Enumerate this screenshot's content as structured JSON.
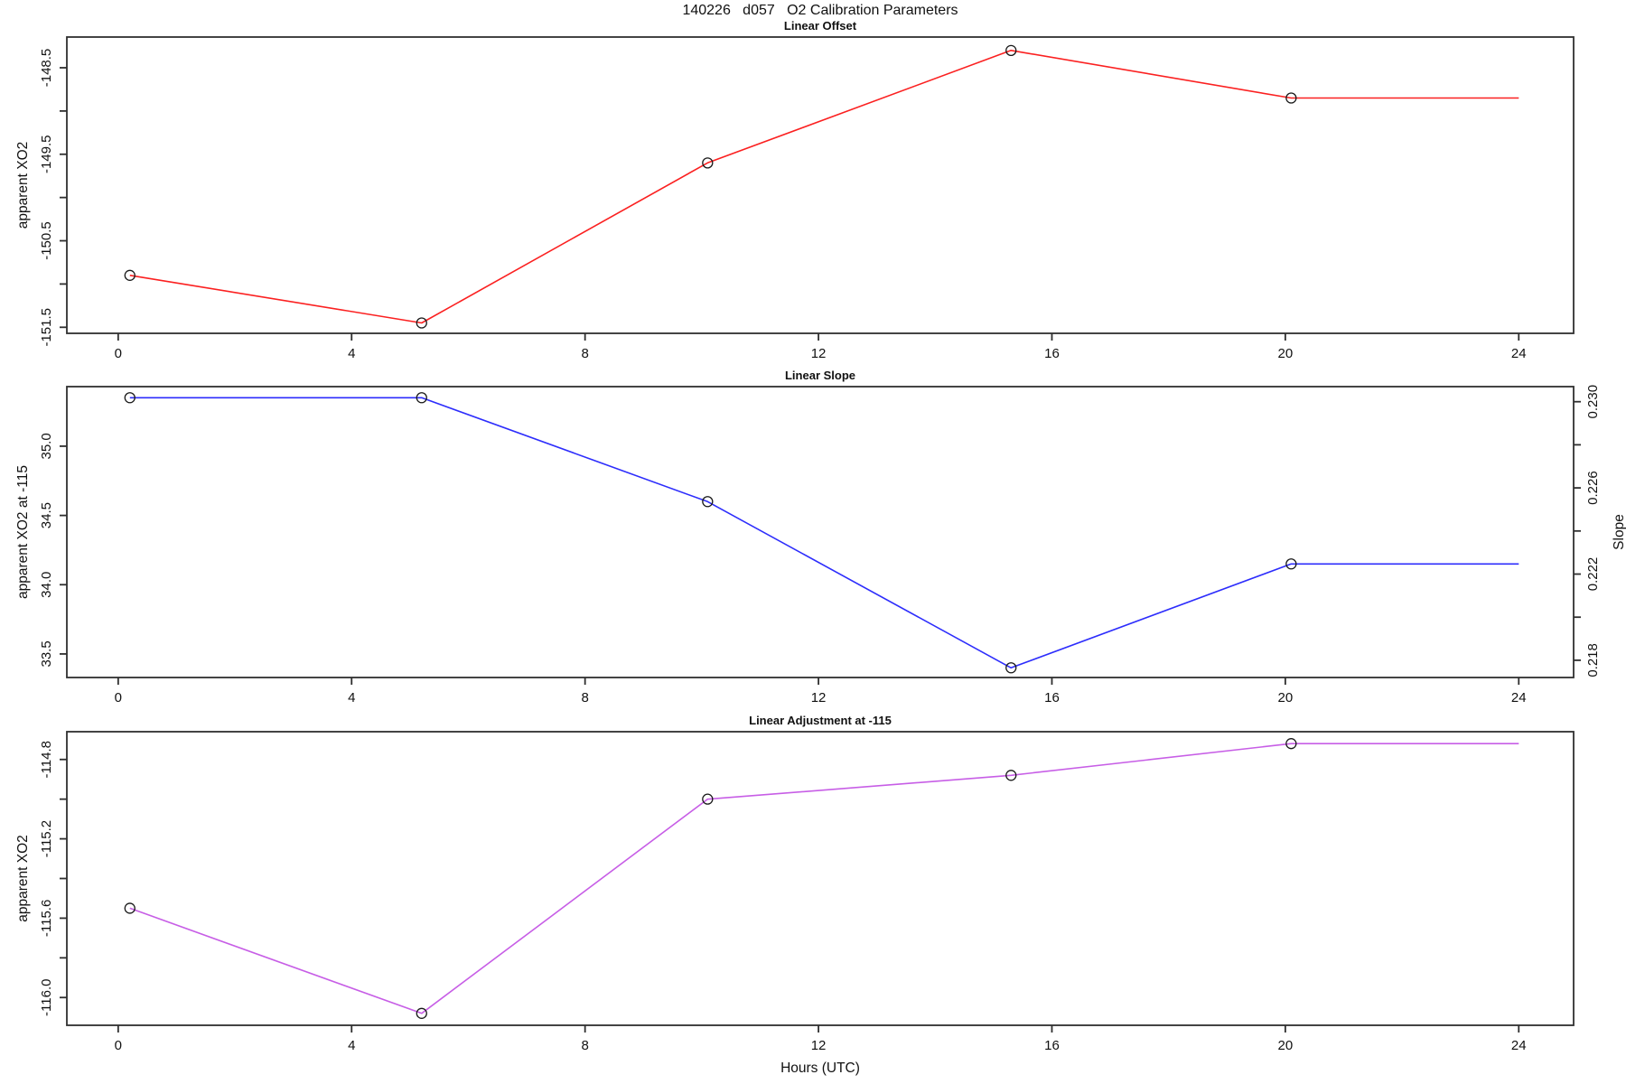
{
  "page_title": "140226   d057   O2 Calibration Parameters",
  "x_axis": {
    "label": "Hours (UTC)",
    "ticks": [
      0,
      4,
      8,
      12,
      16,
      20,
      24
    ],
    "tick_labels": [
      "0",
      "4",
      "8",
      "12",
      "16",
      "20",
      "24"
    ],
    "lim": [
      -0.88,
      24.94
    ]
  },
  "chart_data": [
    {
      "type": "line",
      "title": "Linear Offset",
      "ylabel": "apparent XO2",
      "line_color": "#fb2020",
      "marker": "open-circle",
      "x": [
        0.2,
        5.2,
        10.1,
        15.3,
        20.1
      ],
      "values": [
        -150.9,
        -151.45,
        -149.6,
        -148.3,
        -148.85
      ],
      "line_end_x": 24,
      "ylim": [
        -151.57,
        -148.145
      ],
      "ytick_values": [
        -151.5,
        -151.0,
        -150.5,
        -150.0,
        -149.5,
        -149.0,
        -148.5
      ],
      "ytick_labels": [
        "-151.5",
        "",
        "-150.5",
        "",
        "-149.5",
        "",
        "-148.5"
      ]
    },
    {
      "type": "line",
      "title": "Linear Slope",
      "ylabel": "apparent XO2 at -115",
      "ylabel_right": "Slope",
      "line_color": "#2d2dfc",
      "marker": "open-circle",
      "x": [
        0.2,
        5.2,
        10.1,
        15.3,
        20.1
      ],
      "values": [
        35.35,
        35.35,
        34.6,
        33.4,
        34.15
      ],
      "slope_values": [
        0.2302,
        0.2302,
        0.2254,
        0.2176,
        0.2224
      ],
      "line_end_x": 24,
      "ylim": [
        33.33,
        35.43
      ],
      "ytick_values": [
        33.5,
        34.0,
        34.5,
        35.0
      ],
      "ytick_labels": [
        "33.5",
        "34.0",
        "34.5",
        "35.0"
      ],
      "right_ylim": [
        0.2172,
        0.2307
      ],
      "right_tick_values": [
        0.218,
        0.22,
        0.222,
        0.224,
        0.226,
        0.228,
        0.23
      ],
      "right_tick_labels": [
        "0.218",
        "",
        "0.222",
        "",
        "0.226",
        "",
        "0.230"
      ]
    },
    {
      "type": "line",
      "title": "Linear Adjustment at -115",
      "ylabel": "apparent XO2",
      "line_color": "#c75ee6",
      "marker": "open-circle",
      "x": [
        0.2,
        5.2,
        10.1,
        15.3,
        20.1
      ],
      "values": [
        -115.55,
        -116.08,
        -115.0,
        -114.88,
        -114.72
      ],
      "line_end_x": 24,
      "ylim": [
        -116.14,
        -114.66
      ],
      "ytick_values": [
        -116.0,
        -115.8,
        -115.6,
        -115.4,
        -115.2,
        -115.0,
        -114.8
      ],
      "ytick_labels": [
        "-116.0",
        "",
        "-115.6",
        "",
        "-115.2",
        "",
        "-114.8"
      ]
    }
  ]
}
